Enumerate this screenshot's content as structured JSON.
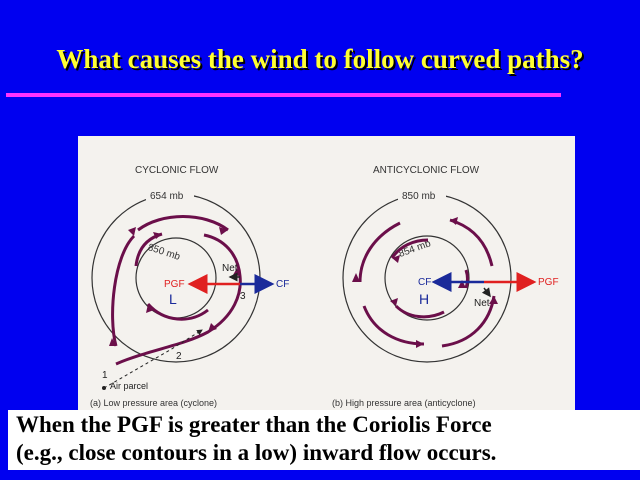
{
  "slide": {
    "title": "What causes the wind to follow curved paths?",
    "caption_lines": [
      "When the PGF is greater than the Coriolis Force",
      "(e.g., close contours in a low) inward flow occurs."
    ]
  },
  "cyclonic": {
    "heading": "CYCLONIC FLOW",
    "outer_isobar": "654 mb",
    "inner_isobar": "850 mb",
    "center": "L",
    "pgf": "PGF",
    "cf": "CF",
    "net": "Net",
    "p1": "1",
    "p2": "2",
    "p3": "3",
    "air_parcel": "Air parcel",
    "sub_caption": "(a) Low pressure area (cyclone)"
  },
  "anticyclonic": {
    "heading": "ANTICYCLONIC FLOW",
    "outer_isobar": "850 mb",
    "inner_isobar": "854 mb",
    "center": "H",
    "pgf": "PGF",
    "cf": "CF",
    "net": "Net",
    "sub_caption": "(b) High pressure area (anticyclone)"
  },
  "colors": {
    "background": "#0000f0",
    "title": "#ffff33",
    "rule": "#ff33ff",
    "pgf_arrow": "#e02020",
    "cf_arrow": "#1a2a9a",
    "flow_arrow": "#6b0f4a"
  }
}
